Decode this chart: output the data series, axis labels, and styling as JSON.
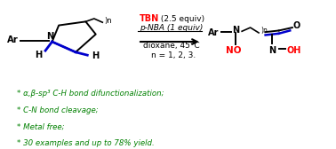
{
  "background_color": "#ffffff",
  "figsize": [
    3.78,
    1.68
  ],
  "dpi": 100,
  "bullet_lines": [
    "α,β-sp³ C-H bond difunctionalization;",
    "C-N bond cleavage;",
    "Metal free;",
    "30 examples and up to 78% yield."
  ],
  "bullet_color": "#008000",
  "bullet_fontsize": 6.2,
  "red_color": "#ff0000",
  "blue_color": "#0000cd",
  "black_color": "#000000",
  "conditions_fontsize": 6.5,
  "reaction_conditions_line1_red": "TBN",
  "reaction_conditions_line1_black": " (2.5 equiv)",
  "reaction_conditions_line2": "p-NBA (1 equiv)",
  "reaction_conditions_line3": "dioxane, 45°C",
  "reaction_conditions_line4": "n = 1, 2, 3."
}
